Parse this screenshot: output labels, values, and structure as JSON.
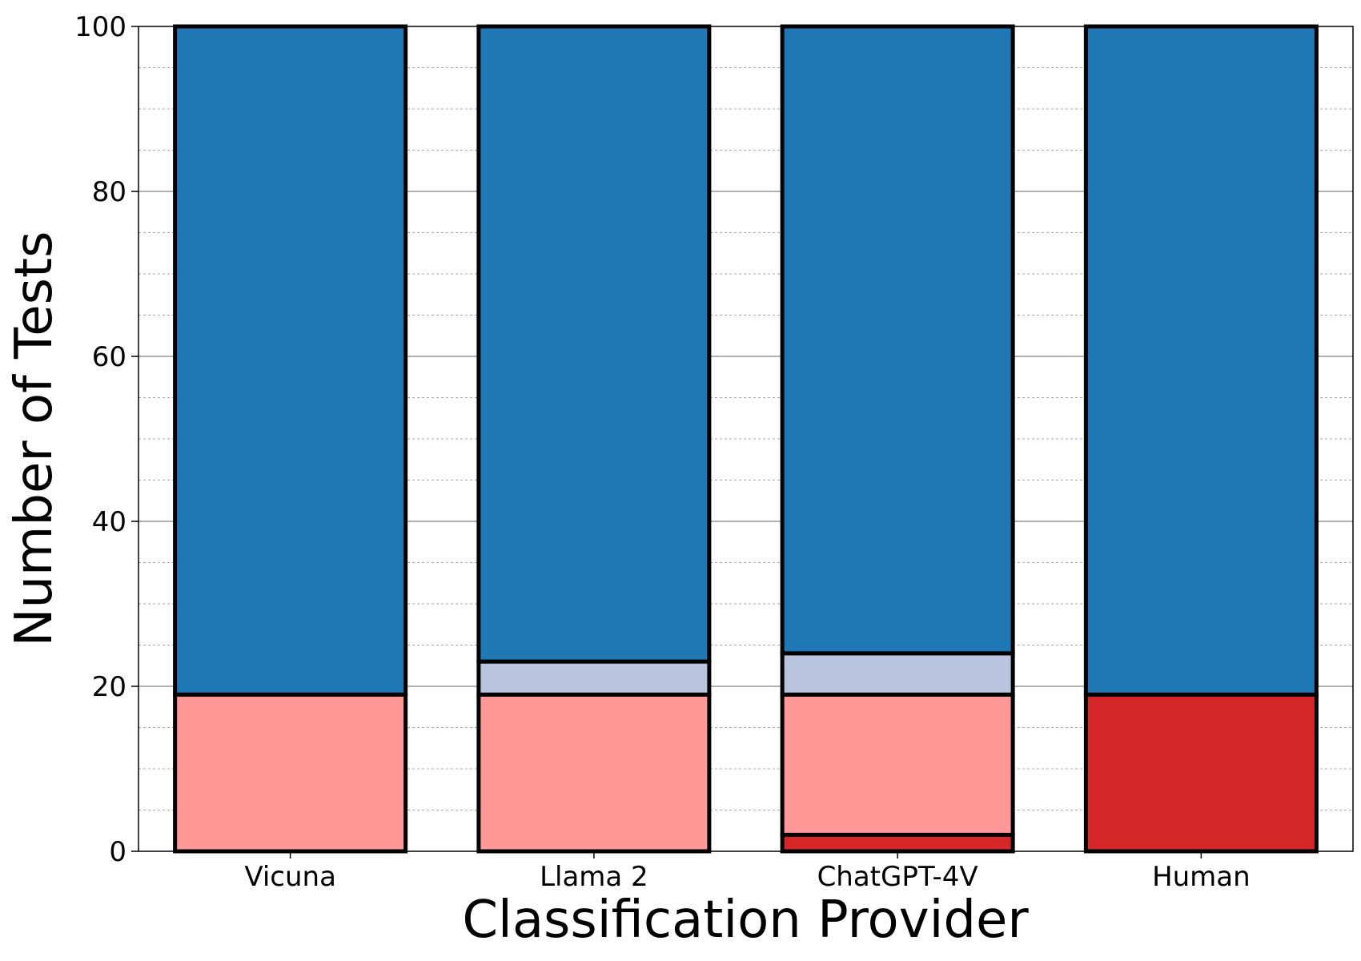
{
  "chart_data": {
    "type": "bar",
    "stacked": true,
    "title": "",
    "xlabel": "Classification Provider",
    "ylabel": "Number of Tests",
    "ylim": [
      0,
      100
    ],
    "yticks": [
      "0",
      "20",
      "40",
      "60",
      "80",
      "100"
    ],
    "grid": true,
    "categories": [
      "Vicuna",
      "Llama 2",
      "ChatGPT-4V",
      "Human"
    ],
    "series": [
      {
        "color": "#d62728",
        "values": [
          0,
          0,
          2,
          19
        ]
      },
      {
        "color": "#ff9896",
        "values": [
          19,
          19,
          17,
          0
        ]
      },
      {
        "color": "#b9c5de",
        "values": [
          0,
          4,
          5,
          0
        ]
      },
      {
        "color": "#1f77b4",
        "values": [
          81,
          77,
          76,
          81
        ]
      }
    ]
  }
}
